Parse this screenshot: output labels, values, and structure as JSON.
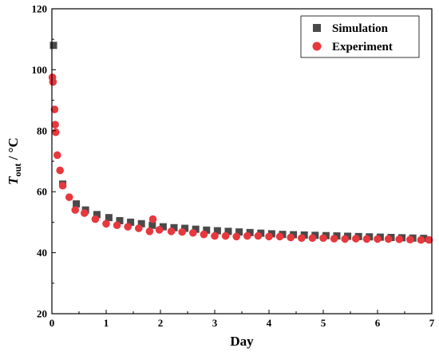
{
  "chart_data": {
    "type": "scatter",
    "xlabel": "Day",
    "ylabel_main": "T",
    "ylabel_sub": "out",
    "ylabel_unit": " / °C",
    "xlim": [
      0,
      7
    ],
    "ylim": [
      20,
      120
    ],
    "xticks": [
      0,
      1,
      2,
      3,
      4,
      5,
      6,
      7
    ],
    "yticks": [
      20,
      40,
      60,
      80,
      100,
      120
    ],
    "grid": false,
    "legend_position": "top-right",
    "series": [
      {
        "name": "Simulation",
        "marker": "square",
        "color": "#4a4a4a",
        "x": [
          0.03,
          0.2,
          0.45,
          0.62,
          0.83,
          1.05,
          1.25,
          1.45,
          1.65,
          1.85,
          2.05,
          2.25,
          2.45,
          2.65,
          2.85,
          3.05,
          3.25,
          3.45,
          3.65,
          3.85,
          4.05,
          4.25,
          4.45,
          4.65,
          4.85,
          5.05,
          5.25,
          5.45,
          5.65,
          5.85,
          6.05,
          6.25,
          6.45,
          6.65,
          6.85
        ],
        "y": [
          108,
          62.5,
          56,
          54,
          52.5,
          51.5,
          50.5,
          50,
          49.5,
          49,
          48.5,
          48.2,
          48,
          47.7,
          47.4,
          47.2,
          47,
          46.8,
          46.6,
          46.4,
          46.2,
          46,
          45.9,
          45.8,
          45.7,
          45.6,
          45.5,
          45.4,
          45.3,
          45.2,
          45.1,
          45,
          44.9,
          44.8,
          44.7
        ]
      },
      {
        "name": "Experiment",
        "marker": "circle",
        "color": "#e8383d",
        "x": [
          0.01,
          0.02,
          0.05,
          0.06,
          0.07,
          0.1,
          0.15,
          0.2,
          0.32,
          0.43,
          0.6,
          0.8,
          1.0,
          1.2,
          1.4,
          1.6,
          1.8,
          1.86,
          1.98,
          2.2,
          2.4,
          2.6,
          2.8,
          3.0,
          3.2,
          3.4,
          3.6,
          3.8,
          4.0,
          4.2,
          4.4,
          4.6,
          4.8,
          5.0,
          5.2,
          5.4,
          5.6,
          5.8,
          6.0,
          6.2,
          6.4,
          6.6,
          6.8,
          6.95
        ],
        "y": [
          97.5,
          96,
          87,
          82,
          79.5,
          72,
          67,
          62,
          58.2,
          54,
          53,
          51,
          49.5,
          49,
          48.5,
          48,
          47,
          51,
          47.5,
          47,
          46.8,
          46.5,
          46,
          45.5,
          45.5,
          45.3,
          45.5,
          45.5,
          45.3,
          45.3,
          45,
          44.8,
          44.8,
          44.8,
          44.6,
          44.5,
          44.6,
          44.5,
          44.5,
          44.5,
          44.4,
          44.3,
          44.2,
          44.2
        ]
      }
    ]
  }
}
